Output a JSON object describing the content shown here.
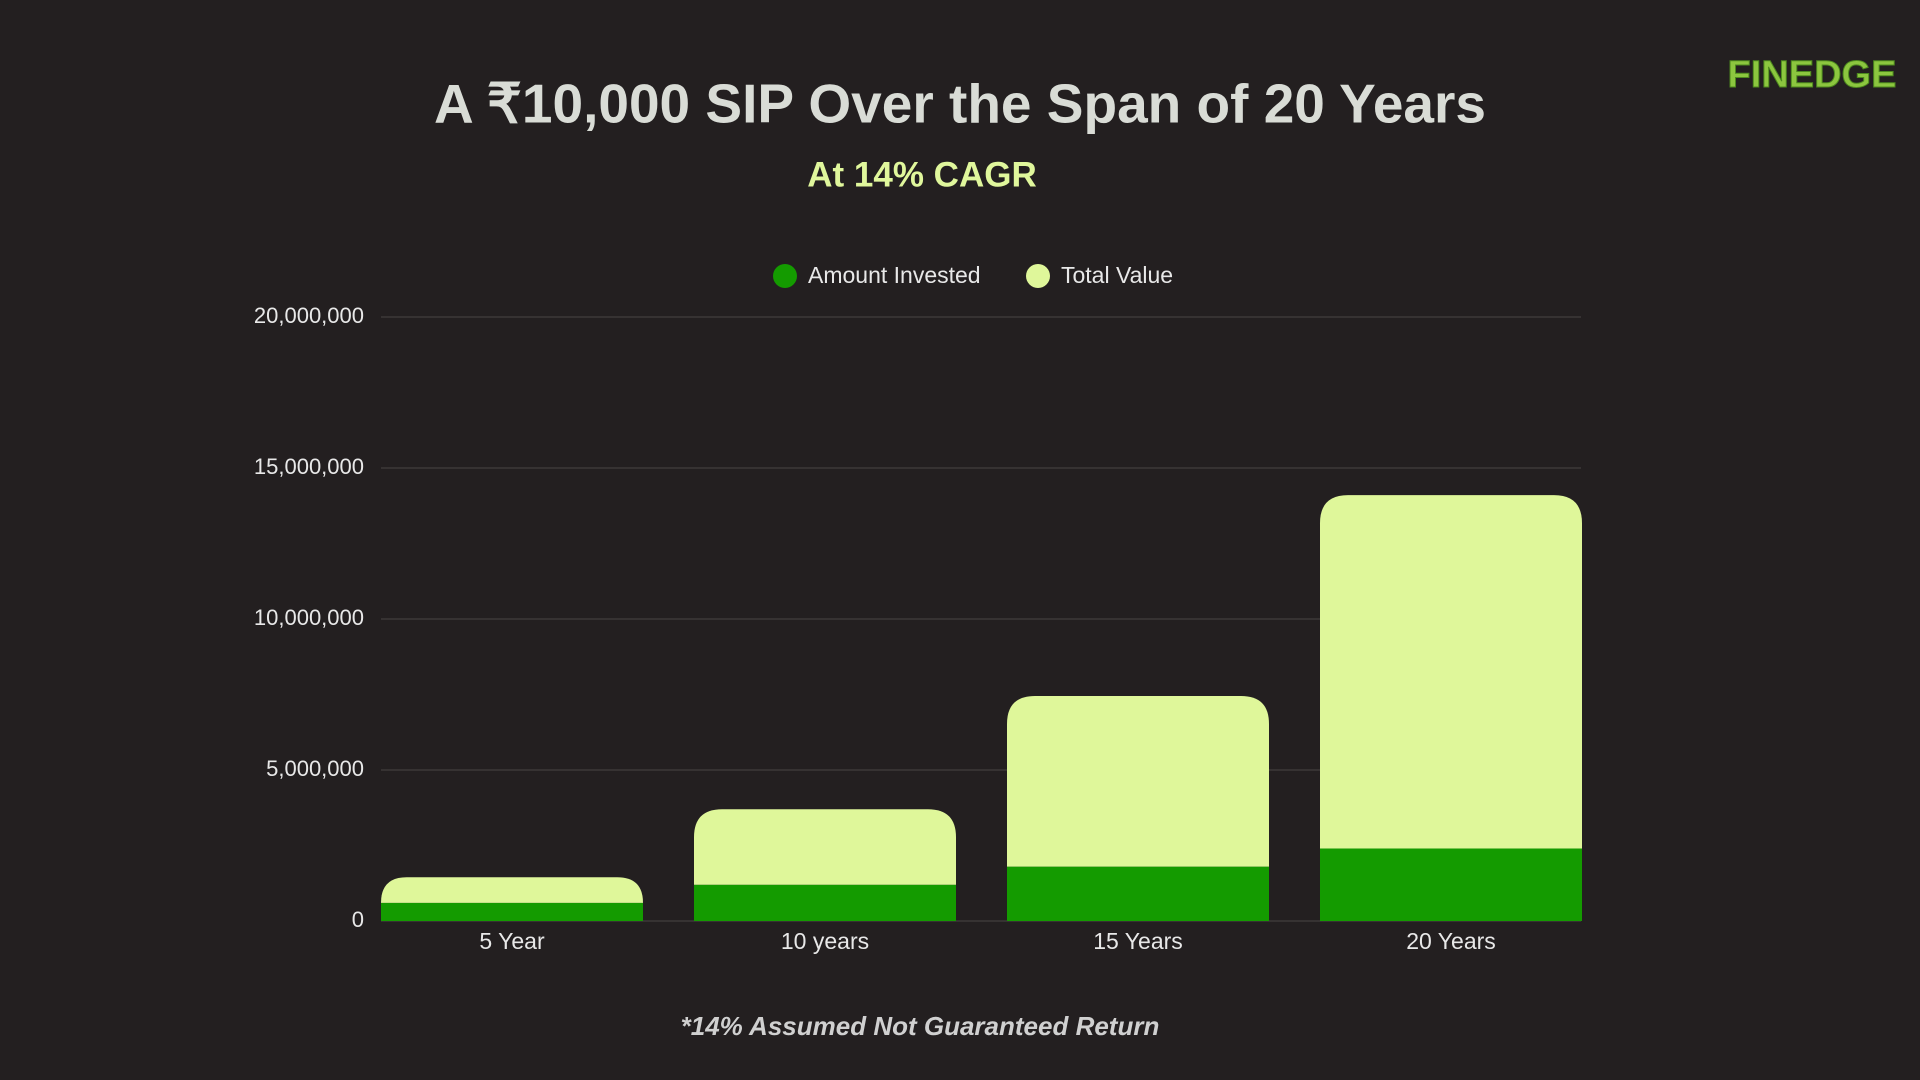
{
  "logo": "FINEDGE",
  "chart_data": {
    "type": "stacked_bar",
    "title": "A ₹10,000 SIP Over the Span of 20 Years",
    "subtitle": "At 14% CAGR",
    "footnote": "*14% Assumed Not Guaranteed Return",
    "categories": [
      "5 Year",
      "10 years",
      "15 Years",
      "20 Years"
    ],
    "series": [
      {
        "name": "Amount Invested",
        "color": "#149b00",
        "values": [
          600000,
          1200000,
          1800000,
          2400000
        ]
      },
      {
        "name": "Total Value",
        "color": "#dff79a",
        "values": [
          850000,
          2500000,
          5650000,
          11700000
        ]
      }
    ],
    "ylim": [
      0,
      20000000
    ],
    "yticks": [
      0,
      {
        "value": 5000000,
        "label": "5,000,000"
      },
      {
        "value": 10000000,
        "label": "10,000,000"
      },
      {
        "value": 15000000,
        "label": "15,000,000"
      },
      {
        "value": 20000000,
        "label": "20,000,000"
      }
    ],
    "grid": true
  }
}
